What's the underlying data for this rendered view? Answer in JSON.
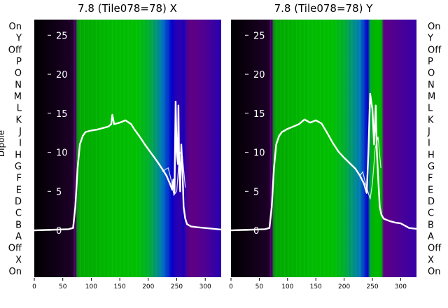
{
  "chart_data": {
    "type": "heatmap",
    "ylabel": "Dipole",
    "row_labels": [
      "On",
      "Y",
      "Off",
      "P",
      "O",
      "N",
      "M",
      "L",
      "K",
      "J",
      "I",
      "H",
      "G",
      "F",
      "E",
      "D",
      "C",
      "B",
      "A",
      "Off",
      "X",
      "On"
    ],
    "xticks": [
      0,
      50,
      100,
      150,
      200,
      250,
      300
    ],
    "yticks": [
      0,
      5,
      10,
      15,
      20,
      25
    ],
    "xlim": [
      0,
      328
    ],
    "ylim": [
      -6,
      27
    ],
    "colormap": [
      "#000000",
      "#7a00a8",
      "#00a800",
      "#00b000",
      "#00c000",
      "#0078c0",
      "#0000d0",
      "#4000a0",
      "#6a007a"
    ],
    "panels": [
      {
        "title": "7.8 (Tile078=78) X",
        "column_levels": [
          [
            0,
            0
          ],
          [
            68,
            0.03
          ],
          [
            70,
            0.1
          ],
          [
            72,
            0.05
          ],
          [
            75,
            0.22
          ],
          [
            80,
            0.28
          ],
          [
            90,
            0.3
          ],
          [
            100,
            0.34
          ],
          [
            110,
            0.38
          ],
          [
            125,
            0.42
          ],
          [
            140,
            0.45
          ],
          [
            160,
            0.47
          ],
          [
            180,
            0.49
          ],
          [
            200,
            0.53
          ],
          [
            215,
            0.58
          ],
          [
            225,
            0.63
          ],
          [
            235,
            0.7
          ],
          [
            242,
            0.76
          ],
          [
            248,
            0.82
          ],
          [
            258,
            0.84
          ],
          [
            262,
            0.78
          ],
          [
            266,
            0.9
          ],
          [
            275,
            0.97
          ],
          [
            300,
            0.92
          ],
          [
            320,
            0.85
          ],
          [
            328,
            0.83
          ]
        ],
        "line": {
          "x": [
            0,
            20,
            40,
            60,
            68,
            72,
            76,
            80,
            85,
            90,
            95,
            100,
            110,
            120,
            130,
            135,
            137,
            140,
            150,
            160,
            170,
            175,
            185,
            195,
            205,
            215,
            225,
            232,
            238,
            242,
            244,
            246,
            248,
            250,
            252,
            253,
            254,
            256,
            258,
            260,
            262,
            265,
            268,
            275,
            285,
            300,
            315,
            328
          ],
          "y": [
            0,
            0.05,
            0.1,
            0.15,
            0.3,
            3,
            8,
            11,
            12.1,
            12.6,
            12.7,
            12.8,
            12.9,
            13.1,
            13.3,
            13.6,
            14.8,
            13.6,
            13.8,
            14.1,
            13.6,
            13.0,
            12,
            10.9,
            9.9,
            8.9,
            7.8,
            7.0,
            6.0,
            5.2,
            6.5,
            4.8,
            16.5,
            10,
            8.5,
            16,
            9,
            5,
            11,
            8,
            3,
            1.5,
            0.8,
            0.5,
            0.4,
            0.3,
            0.2,
            0.1
          ]
        },
        "secondary_line": {
          "x": [
            225,
            230,
            235,
            240,
            245,
            250,
            255,
            260,
            265
          ],
          "y": [
            7.5,
            7.8,
            8.0,
            6.5,
            4.5,
            5.0,
            10.0,
            9.5,
            5.5
          ]
        }
      },
      {
        "title": "7.8 (Tile078=78) Y",
        "column_levels": [
          [
            0,
            0
          ],
          [
            68,
            0.03
          ],
          [
            70,
            0.1
          ],
          [
            72,
            0.05
          ],
          [
            75,
            0.22
          ],
          [
            80,
            0.28
          ],
          [
            90,
            0.3
          ],
          [
            100,
            0.34
          ],
          [
            110,
            0.38
          ],
          [
            125,
            0.42
          ],
          [
            140,
            0.45
          ],
          [
            160,
            0.47
          ],
          [
            180,
            0.49
          ],
          [
            200,
            0.53
          ],
          [
            215,
            0.58
          ],
          [
            228,
            0.62
          ],
          [
            236,
            0.7
          ],
          [
            242,
            0.78
          ],
          [
            246,
            0.55
          ],
          [
            250,
            0.4
          ],
          [
            260,
            0.45
          ],
          [
            266,
            0.4
          ],
          [
            270,
            0.96
          ],
          [
            290,
            0.93
          ],
          [
            310,
            0.88
          ],
          [
            328,
            0.86
          ]
        ],
        "line": {
          "x": [
            0,
            20,
            40,
            60,
            68,
            72,
            76,
            80,
            85,
            90,
            95,
            100,
            110,
            120,
            130,
            140,
            150,
            160,
            170,
            180,
            190,
            200,
            210,
            220,
            228,
            235,
            240,
            243,
            246,
            250,
            253,
            256,
            258,
            260,
            263,
            266,
            270,
            280,
            285,
            290,
            300,
            315,
            328
          ],
          "y": [
            0,
            0.05,
            0.1,
            0.15,
            0.3,
            3,
            8,
            11,
            12.1,
            12.6,
            12.8,
            13.0,
            13.3,
            13.6,
            14.2,
            13.8,
            14.1,
            13.7,
            12.5,
            11.2,
            10.1,
            9.3,
            8.6,
            7.9,
            7.0,
            6.0,
            4.8,
            10.0,
            17.5,
            15.5,
            11.0,
            16.0,
            10,
            7,
            3,
            2,
            1.5,
            1.2,
            1.1,
            1.0,
            0.9,
            0.3,
            0.2
          ]
        },
        "secondary_line": {
          "x": [
            228,
            233,
            238,
            242,
            246,
            250,
            255,
            260,
            265
          ],
          "y": [
            7.0,
            7.5,
            6.0,
            5.0,
            4.0,
            6.0,
            10.5,
            12.0,
            8.0
          ]
        }
      }
    ]
  }
}
